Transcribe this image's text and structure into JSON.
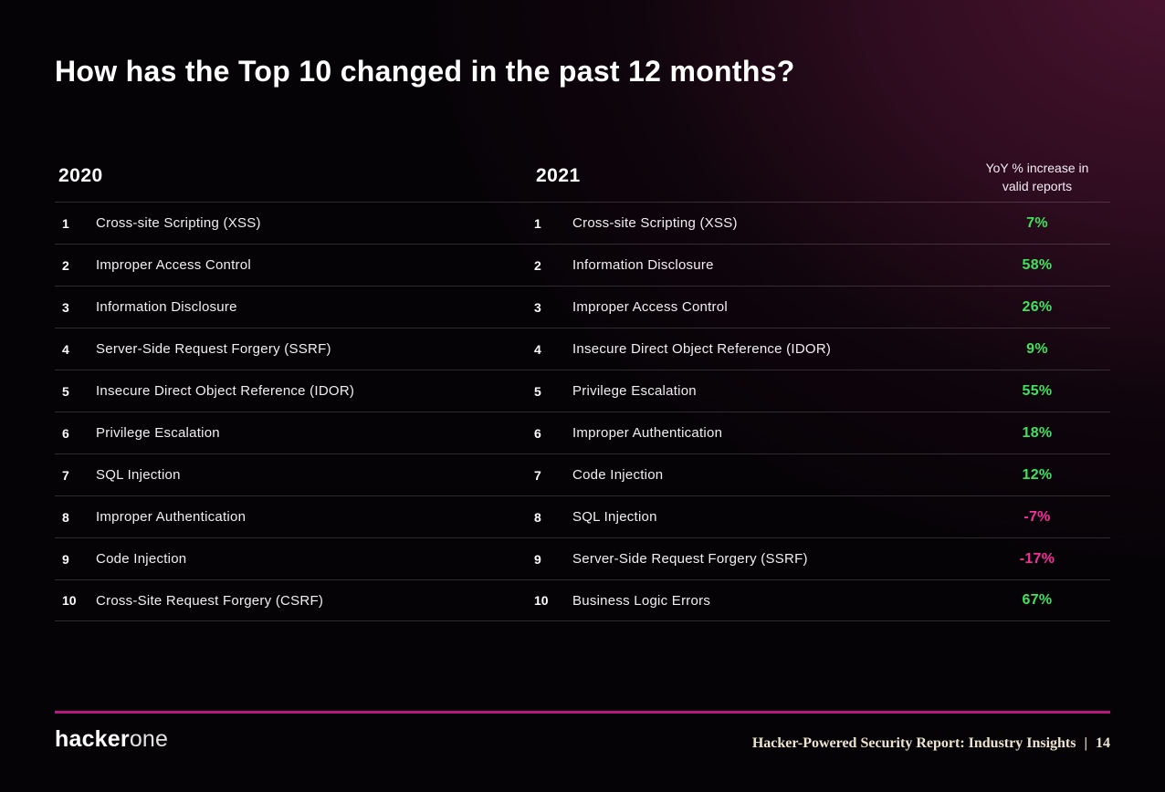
{
  "title": "How has the Top 10 changed in the past 12 months?",
  "colors": {
    "positive": "#40e25b",
    "negative": "#f5309c",
    "accent_line": "#b5197f",
    "background_glow": "#4a1330"
  },
  "table": {
    "year_left": "2020",
    "year_right": "2021",
    "yoy_header_line1": "YoY % increase in",
    "yoy_header_line2": "valid reports",
    "rows": [
      {
        "rank": "1",
        "name_2020": "Cross-site Scripting (XSS)",
        "name_2021": "Cross-site Scripting (XSS)",
        "yoy": "7%",
        "trend": "positive"
      },
      {
        "rank": "2",
        "name_2020": "Improper Access Control",
        "name_2021": "Information Disclosure",
        "yoy": "58%",
        "trend": "positive"
      },
      {
        "rank": "3",
        "name_2020": "Information Disclosure",
        "name_2021": "Improper Access Control",
        "yoy": "26%",
        "trend": "positive"
      },
      {
        "rank": "4",
        "name_2020": "Server-Side Request Forgery (SSRF)",
        "name_2021": "Insecure Direct Object Reference (IDOR)",
        "yoy": "9%",
        "trend": "positive"
      },
      {
        "rank": "5",
        "name_2020": "Insecure Direct Object Reference (IDOR)",
        "name_2021": "Privilege Escalation",
        "yoy": "55%",
        "trend": "positive"
      },
      {
        "rank": "6",
        "name_2020": "Privilege Escalation",
        "name_2021": "Improper Authentication",
        "yoy": "18%",
        "trend": "positive"
      },
      {
        "rank": "7",
        "name_2020": "SQL Injection",
        "name_2021": "Code Injection",
        "yoy": "12%",
        "trend": "positive"
      },
      {
        "rank": "8",
        "name_2020": "Improper Authentication",
        "name_2021": "SQL Injection",
        "yoy": "-7%",
        "trend": "negative"
      },
      {
        "rank": "9",
        "name_2020": "Code Injection",
        "name_2021": "Server-Side Request Forgery (SSRF)",
        "yoy": "-17%",
        "trend": "negative"
      },
      {
        "rank": "10",
        "name_2020": "Cross-Site Request Forgery (CSRF)",
        "name_2021": "Business Logic Errors",
        "yoy": "67%",
        "trend": "positive"
      }
    ]
  },
  "chart_data": {
    "type": "table",
    "title": "How has the Top 10 changed in the past 12 months?",
    "columns": [
      "Rank",
      "2020",
      "2021",
      "YoY % increase in valid reports"
    ],
    "rows": [
      [
        "1",
        "Cross-site Scripting (XSS)",
        "Cross-site Scripting (XSS)",
        "7%"
      ],
      [
        "2",
        "Improper Access Control",
        "Information Disclosure",
        "58%"
      ],
      [
        "3",
        "Information Disclosure",
        "Improper Access Control",
        "26%"
      ],
      [
        "4",
        "Server-Side Request Forgery (SSRF)",
        "Insecure Direct Object Reference (IDOR)",
        "9%"
      ],
      [
        "5",
        "Insecure Direct Object Reference (IDOR)",
        "Privilege Escalation",
        "55%"
      ],
      [
        "6",
        "Privilege Escalation",
        "Improper Authentication",
        "18%"
      ],
      [
        "7",
        "SQL Injection",
        "Code Injection",
        "12%"
      ],
      [
        "8",
        "Improper Authentication",
        "SQL Injection",
        "-7%"
      ],
      [
        "9",
        "Code Injection",
        "Server-Side Request Forgery (SSRF)",
        "-17%"
      ],
      [
        "10",
        "Cross-Site Request Forgery (CSRF)",
        "Business Logic Errors",
        "67%"
      ]
    ]
  },
  "footer": {
    "logo_text_bold": "hacker",
    "logo_text_light": "one",
    "report_title": "Hacker-Powered Security Report: Industry Insights",
    "separator": "|",
    "page_number": "14"
  }
}
